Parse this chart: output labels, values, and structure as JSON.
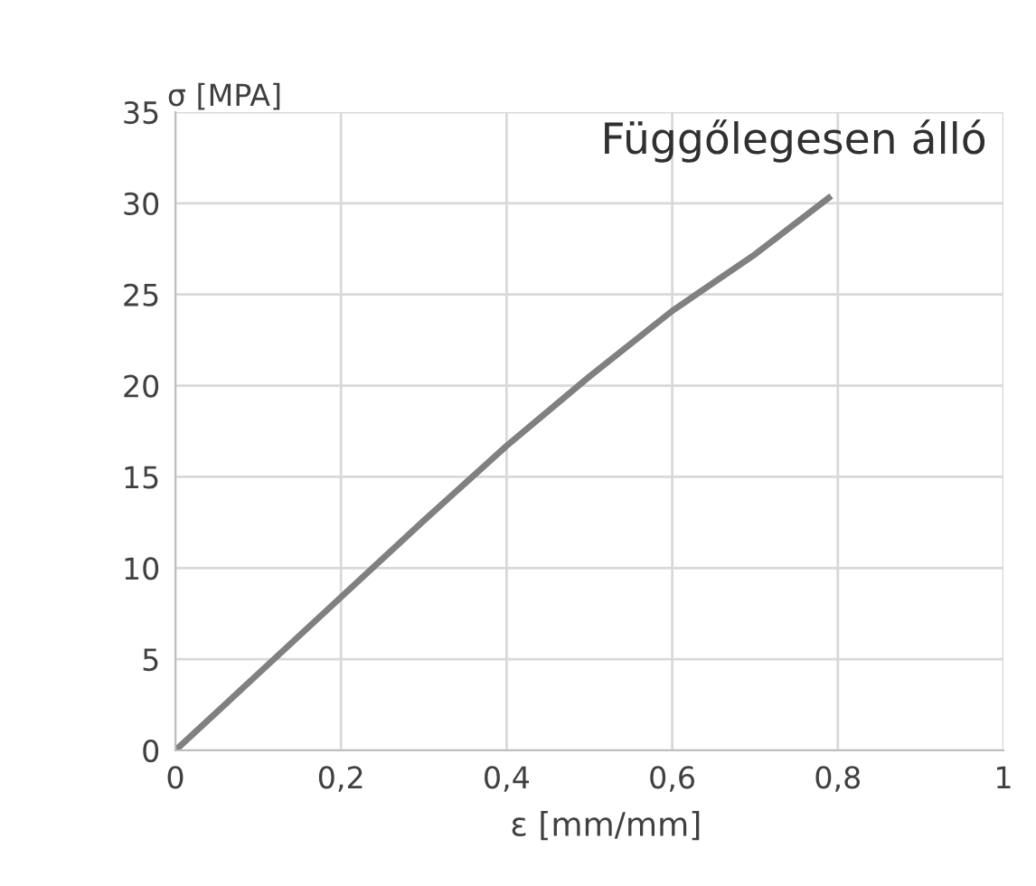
{
  "chart_data": {
    "type": "line",
    "title": "Függőlegesen álló",
    "xlabel": "ε [mm/mm]",
    "ylabel": "σ [MPA]",
    "series": [
      {
        "color": "#808080",
        "x": [
          0,
          0.1,
          0.2,
          0.3,
          0.4,
          0.5,
          0.6,
          0.7,
          0.789
        ],
        "values": [
          0,
          4.2,
          8.4,
          12.6,
          16.7,
          20.5,
          24.1,
          27.2,
          30.3
        ]
      }
    ],
    "xlim": [
      0,
      1
    ],
    "ylim": [
      0,
      35
    ],
    "xticks": [
      0,
      {
        "value": 0.2,
        "label": "0,2"
      },
      {
        "value": 0.4,
        "label": "0,4"
      },
      {
        "value": 0.6,
        "label": "0,6"
      },
      {
        "value": 0.8,
        "label": "0,8"
      },
      1
    ],
    "yticks": [
      0,
      5,
      10,
      15,
      20,
      25,
      30,
      35
    ],
    "grid": true,
    "marker": "none",
    "line_style": "solid"
  }
}
